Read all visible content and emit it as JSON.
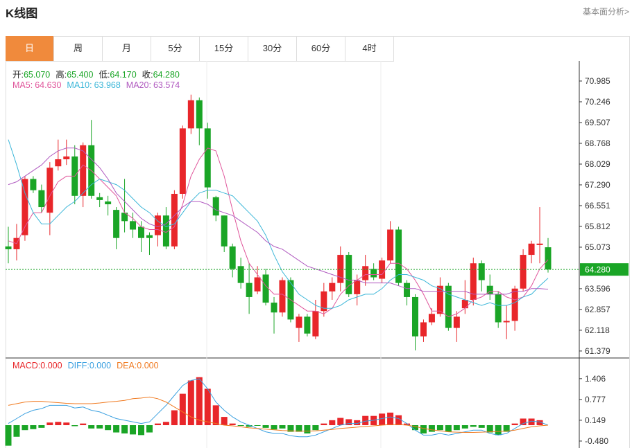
{
  "header": {
    "title": "K线图",
    "link": "基本面分析>"
  },
  "tabs": [
    "日",
    "周",
    "月",
    "5分",
    "15分",
    "30分",
    "60分",
    "4时"
  ],
  "active_tab": 0,
  "chart_data": [
    {
      "type": "candlestick",
      "up_color": "#e8262a",
      "down_color": "#1aa526",
      "ohlc_legend": [
        {
          "name": "开:",
          "value_label": "65.070"
        },
        {
          "name": "高:",
          "value_label": "65.400"
        },
        {
          "name": "低:",
          "value_label": "64.170"
        },
        {
          "name": "收:",
          "value_label": "64.280"
        }
      ],
      "open": [
        65.1,
        65.0,
        65.5,
        67.5,
        67.1,
        66.3,
        67.95,
        68.2,
        68.3,
        66.9,
        68.7,
        66.85,
        66.7,
        66.4,
        66.3,
        66.0,
        65.8,
        65.5,
        65.5,
        66.2,
        65.1,
        66.97,
        69.3,
        70.3,
        69.3,
        66.85,
        66.2,
        65.1,
        64.4,
        63.8,
        63.5,
        64.1,
        63.1,
        62.75,
        63.9,
        62.2,
        62.6,
        61.9,
        62.8,
        63.5,
        63.8,
        64.8,
        63.4,
        63.9,
        64.3,
        63.95,
        64.6,
        65.7,
        63.8,
        63.3,
        61.9,
        62.4,
        62.7,
        63.7,
        62.2,
        62.9,
        63.2,
        64.5,
        63.7,
        63.4,
        62.4,
        62.45,
        63.6,
        64.8,
        65.15,
        65.07
      ],
      "high": [
        65.8,
        65.9,
        67.6,
        67.6,
        67.3,
        68.1,
        68.9,
        68.9,
        68.7,
        68.8,
        69.6,
        67.0,
        66.9,
        66.5,
        67.5,
        66.3,
        66.0,
        65.6,
        66.3,
        66.5,
        67.1,
        69.4,
        70.5,
        70.4,
        69.5,
        66.9,
        66.2,
        65.2,
        64.7,
        64.5,
        64.4,
        64.3,
        63.3,
        64.0,
        64.0,
        62.7,
        62.7,
        63.2,
        63.8,
        64.0,
        65.1,
        64.9,
        64.1,
        64.8,
        64.5,
        64.7,
        66.0,
        65.8,
        63.9,
        63.4,
        62.5,
        62.9,
        64.0,
        63.8,
        62.8,
        63.9,
        64.7,
        64.6,
        64.1,
        63.5,
        63.0,
        63.7,
        65.0,
        65.3,
        66.5,
        65.4
      ],
      "low": [
        64.5,
        64.6,
        65.3,
        67.0,
        66.3,
        65.5,
        67.8,
        68.0,
        66.6,
        66.5,
        66.8,
        66.5,
        66.2,
        65.0,
        65.6,
        65.4,
        64.9,
        64.8,
        65.1,
        65.0,
        65.0,
        66.8,
        69.1,
        68.7,
        66.8,
        66.0,
        64.9,
        64.0,
        63.6,
        62.7,
        63.4,
        63.0,
        62.0,
        62.6,
        62.4,
        61.7,
        61.9,
        61.8,
        62.6,
        63.2,
        63.5,
        63.3,
        63.0,
        63.7,
        63.9,
        63.8,
        64.5,
        63.7,
        63.0,
        61.4,
        61.7,
        62.3,
        62.6,
        62.1,
        61.7,
        62.7,
        63.0,
        63.5,
        63.2,
        62.2,
        61.8,
        62.1,
        63.5,
        64.5,
        64.5,
        64.17
      ],
      "close": [
        65.0,
        65.4,
        67.5,
        67.1,
        66.5,
        67.9,
        68.2,
        68.3,
        66.9,
        68.7,
        66.9,
        66.75,
        66.6,
        65.4,
        66.0,
        65.7,
        65.4,
        65.4,
        66.2,
        65.1,
        66.97,
        69.3,
        70.3,
        69.3,
        67.2,
        66.2,
        65.1,
        64.3,
        63.8,
        63.3,
        64.0,
        63.1,
        62.75,
        63.9,
        62.5,
        62.6,
        62.0,
        62.8,
        63.5,
        63.8,
        64.8,
        63.4,
        63.9,
        64.4,
        64.0,
        64.6,
        65.7,
        63.8,
        63.3,
        61.9,
        62.4,
        62.7,
        63.7,
        62.2,
        62.6,
        63.2,
        64.5,
        63.9,
        63.4,
        62.4,
        62.45,
        63.6,
        64.8,
        65.2,
        65.2,
        64.28
      ],
      "series": [
        {
          "name": "MA5:",
          "color": "#e0559b",
          "value_label": "64.630",
          "values": [
            65.3,
            65.2,
            65.8,
            66.3,
            66.3,
            66.9,
            67.4,
            67.6,
            67.6,
            68.0,
            67.8,
            67.5,
            67.2,
            66.9,
            66.3,
            66.1,
            65.8,
            65.7,
            65.7,
            65.6,
            65.8,
            66.6,
            67.6,
            68.2,
            68.6,
            68.5,
            67.6,
            66.4,
            65.3,
            64.5,
            64.1,
            63.7,
            63.4,
            63.4,
            63.2,
            63.0,
            62.8,
            62.8,
            62.7,
            62.9,
            63.4,
            63.7,
            63.9,
            64.1,
            64.1,
            64.1,
            64.5,
            64.5,
            64.3,
            63.9,
            63.4,
            62.8,
            62.8,
            62.6,
            62.7,
            62.9,
            63.2,
            63.3,
            63.5,
            63.5,
            63.3,
            63.2,
            63.3,
            63.7,
            64.3,
            64.63
          ]
        },
        {
          "name": "MA10:",
          "color": "#3bb6d8",
          "value_label": "63.968",
          "values": [
            68.9,
            68.0,
            67.0,
            66.3,
            65.9,
            65.9,
            66.2,
            66.5,
            66.7,
            67.0,
            67.3,
            67.5,
            67.4,
            67.3,
            67.1,
            66.8,
            66.5,
            66.3,
            66.0,
            65.8,
            65.9,
            66.3,
            66.7,
            67.0,
            67.1,
            67.1,
            67.0,
            66.9,
            66.6,
            66.3,
            66.0,
            65.5,
            64.8,
            64.2,
            63.8,
            63.4,
            63.2,
            63.0,
            62.9,
            62.9,
            63.0,
            63.2,
            63.3,
            63.4,
            63.4,
            63.6,
            63.9,
            64.1,
            64.1,
            64.0,
            63.9,
            63.7,
            63.6,
            63.4,
            63.3,
            63.2,
            63.1,
            63.0,
            63.1,
            63.0,
            63.0,
            63.1,
            63.3,
            63.4,
            63.7,
            63.968
          ]
        },
        {
          "name": "MA20:",
          "color": "#b05ac0",
          "value_label": "63.574",
          "values": [
            67.3,
            67.4,
            67.6,
            67.8,
            68.0,
            68.3,
            68.5,
            68.6,
            68.6,
            68.5,
            68.2,
            67.9,
            67.5,
            67.0,
            66.7,
            66.4,
            66.1,
            65.9,
            65.8,
            65.9,
            66.2,
            66.5,
            66.7,
            66.7,
            66.6,
            66.4,
            66.3,
            66.2,
            66.0,
            65.8,
            65.6,
            65.3,
            65.1,
            65.0,
            64.8,
            64.6,
            64.4,
            64.3,
            64.2,
            64.1,
            64.0,
            63.9,
            63.9,
            63.8,
            63.8,
            63.8,
            63.8,
            63.7,
            63.6,
            63.6,
            63.5,
            63.5,
            63.5,
            63.5,
            63.5,
            63.5,
            63.4,
            63.4,
            63.4,
            63.4,
            63.4,
            63.5,
            63.5,
            63.6,
            63.6,
            63.574
          ]
        }
      ],
      "last_price": {
        "value": 64.28,
        "label": "64.280",
        "color": "#1aa526"
      },
      "ylim": [
        61.18,
        71.65
      ],
      "yticks": [
        70.985,
        70.246,
        69.507,
        68.768,
        68.029,
        {
          "value": 67.29,
          "label": "67.290"
        },
        66.551,
        65.812,
        65.073,
        63.596,
        62.857,
        62.118,
        61.379
      ]
    },
    {
      "type": "bar",
      "up_color": "#e8262a",
      "down_color": "#1aa526",
      "series": [
        {
          "name": "MACD:",
          "type": "bar",
          "color": "#e8262a",
          "value_label": "0.000",
          "values": [
            -0.62,
            -0.35,
            -0.15,
            -0.12,
            -0.08,
            0.08,
            0.1,
            0.08,
            -0.03,
            0.05,
            -0.1,
            -0.1,
            -0.15,
            -0.22,
            -0.25,
            -0.28,
            -0.3,
            -0.22,
            0.05,
            0.1,
            0.45,
            0.95,
            1.35,
            1.45,
            1.1,
            0.6,
            0.25,
            0.05,
            -0.02,
            -0.05,
            -0.02,
            -0.08,
            -0.13,
            -0.1,
            -0.2,
            -0.2,
            -0.25,
            -0.15,
            0.05,
            0.15,
            0.22,
            0.18,
            0.15,
            0.28,
            0.28,
            0.35,
            0.38,
            0.3,
            0.05,
            -0.15,
            -0.25,
            -0.2,
            -0.15,
            -0.2,
            -0.15,
            -0.1,
            -0.05,
            -0.08,
            -0.22,
            -0.3,
            -0.2,
            0.05,
            0.2,
            0.2,
            0.15,
            0
          ]
        },
        {
          "name": "DIFF:",
          "type": "line",
          "color": "#3aa0e0",
          "value_label": "0.000",
          "values": [
            0.05,
            0.2,
            0.35,
            0.45,
            0.5,
            0.6,
            0.6,
            0.6,
            0.52,
            0.55,
            0.45,
            0.4,
            0.3,
            0.2,
            0.15,
            0.1,
            0.05,
            0.1,
            0.35,
            0.6,
            0.9,
            1.2,
            1.35,
            1.4,
            1.1,
            0.7,
            0.45,
            0.25,
            0.1,
            0,
            -0.1,
            -0.2,
            -0.25,
            -0.25,
            -0.32,
            -0.35,
            -0.35,
            -0.3,
            -0.2,
            -0.1,
            0,
            0.05,
            0.05,
            0.12,
            0.15,
            0.2,
            0.25,
            0.2,
            0.05,
            -0.15,
            -0.3,
            -0.3,
            -0.25,
            -0.3,
            -0.25,
            -0.2,
            -0.15,
            -0.15,
            -0.25,
            -0.3,
            -0.25,
            -0.1,
            0.05,
            0.12,
            0.1,
            0
          ]
        },
        {
          "name": "DEA:",
          "type": "line",
          "color": "#f07a20",
          "value_label": "0.000",
          "values": [
            0.6,
            0.65,
            0.7,
            0.72,
            0.72,
            0.7,
            0.68,
            0.66,
            0.65,
            0.65,
            0.65,
            0.67,
            0.7,
            0.72,
            0.75,
            0.8,
            0.82,
            0.85,
            0.8,
            0.7,
            0.55,
            0.4,
            0.25,
            0.15,
            0.1,
            0.05,
            0,
            -0.02,
            -0.05,
            -0.08,
            -0.1,
            -0.12,
            -0.14,
            -0.16,
            -0.17,
            -0.18,
            -0.18,
            -0.17,
            -0.15,
            -0.13,
            -0.1,
            -0.08,
            -0.06,
            -0.04,
            -0.02,
            0,
            0.02,
            0.02,
            0,
            -0.04,
            -0.1,
            -0.14,
            -0.17,
            -0.2,
            -0.21,
            -0.22,
            -0.22,
            -0.21,
            -0.2,
            -0.19,
            -0.18,
            -0.15,
            -0.1,
            -0.05,
            -0.02,
            0
          ]
        }
      ],
      "ylim": [
        -0.69,
        2.01
      ],
      "yticks": [
        1.406,
        0.777,
        0.149,
        {
          "value": -0.48,
          "label": "-0.480"
        }
      ]
    }
  ]
}
